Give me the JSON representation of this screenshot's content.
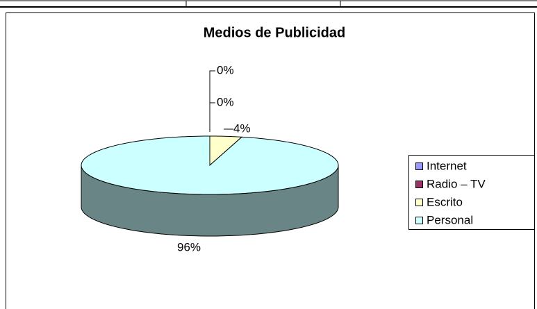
{
  "chart_data": {
    "type": "pie",
    "title": "Medios de Publicidad",
    "categories": [
      "Internet",
      "Radio – TV",
      "Escrito",
      "Personal"
    ],
    "values": [
      0,
      0,
      4,
      96
    ],
    "value_labels": [
      "0%",
      "0%",
      "4%",
      "96%"
    ],
    "colors": [
      "#9999ff",
      "#993366",
      "#ffffcc",
      "#ccffff"
    ],
    "legend": "right"
  }
}
